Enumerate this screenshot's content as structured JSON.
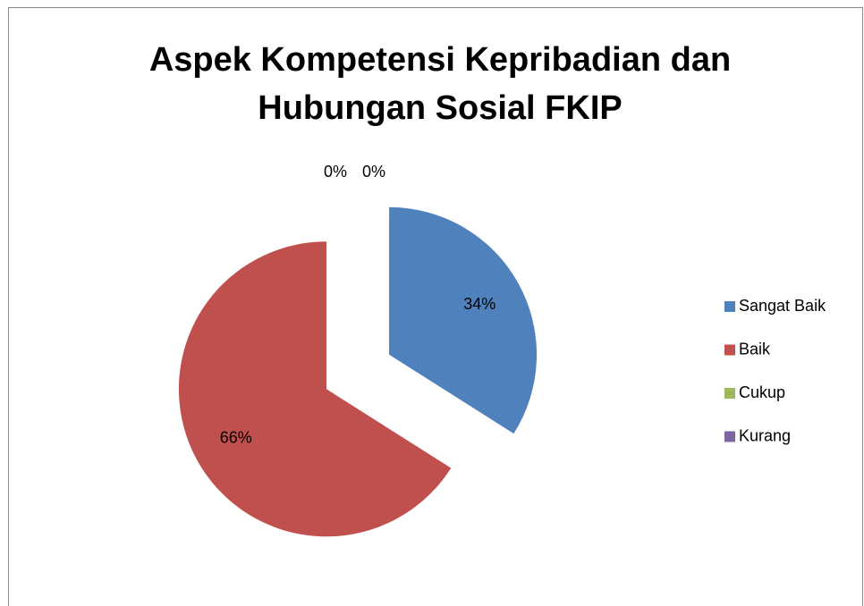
{
  "chart_data": {
    "type": "pie",
    "title": "Aspek Kompetensi Kepribadian dan Hubungan Sosial FKIP",
    "categories": [
      "Sangat Baik",
      "Baik",
      "Cukup",
      "Kurang"
    ],
    "values": [
      34,
      66,
      0,
      0
    ],
    "value_labels": [
      "34%",
      "66%",
      "0%",
      "0%"
    ],
    "colors": [
      "#4f81bd",
      "#c0504d",
      "#9bbb59",
      "#8064a2"
    ],
    "exploded": true,
    "legend": "right"
  }
}
